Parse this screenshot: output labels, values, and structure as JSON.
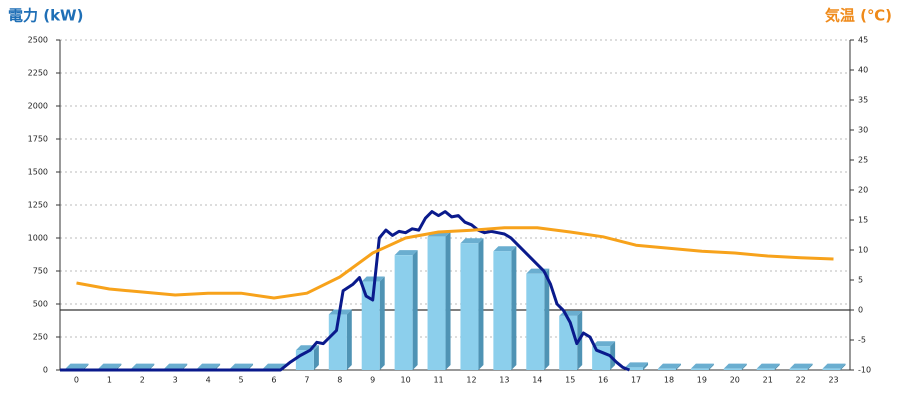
{
  "chart_data": {
    "type": "bar",
    "title_left": "電力 (kW)",
    "title_left_color": "#1f6fb6",
    "title_right": "気温 (℃)",
    "title_right_color": "#ef8a1a",
    "categories": [
      "0",
      "1",
      "2",
      "3",
      "4",
      "5",
      "6",
      "7",
      "8",
      "9",
      "10",
      "11",
      "12",
      "13",
      "14",
      "15",
      "16",
      "17",
      "18",
      "19",
      "20",
      "21",
      "22",
      "23"
    ],
    "xlim": [
      -0.5,
      23.5
    ],
    "ylim": [
      0,
      2500
    ],
    "yticks": [
      0,
      250,
      500,
      750,
      1000,
      1250,
      1500,
      1750,
      2000,
      2250,
      2500
    ],
    "y2lim": [
      -10,
      45
    ],
    "y2ticks": [
      -10,
      -5,
      0,
      5,
      10,
      15,
      20,
      25,
      30,
      35,
      40,
      45
    ],
    "grid": true,
    "series": [
      {
        "type": "bar",
        "color": "#8ccfec",
        "values": [
          10,
          10,
          10,
          10,
          10,
          10,
          10,
          150,
          420,
          670,
          870,
          1010,
          960,
          900,
          730,
          410,
          180,
          20,
          10,
          10,
          10,
          10,
          10,
          10
        ]
      },
      {
        "type": "line",
        "color": "#0a1a8c",
        "x": [
          -0.5,
          6.2,
          6.5,
          6.8,
          7.1,
          7.3,
          7.5,
          7.7,
          7.9,
          8.1,
          8.4,
          8.6,
          8.8,
          9.0,
          9.2,
          9.4,
          9.6,
          9.8,
          10.0,
          10.2,
          10.4,
          10.6,
          10.8,
          11.0,
          11.2,
          11.4,
          11.6,
          11.8,
          12.0,
          12.2,
          12.4,
          12.6,
          12.8,
          13.0,
          13.2,
          13.4,
          13.6,
          13.8,
          14.0,
          14.2,
          14.4,
          14.6,
          14.8,
          15.0,
          15.2,
          15.4,
          15.6,
          15.8,
          16.0,
          16.2,
          16.4,
          16.6,
          16.8
        ],
        "values": [
          0,
          0,
          60,
          110,
          150,
          210,
          200,
          250,
          300,
          600,
          650,
          700,
          560,
          530,
          1000,
          1060,
          1020,
          1050,
          1040,
          1070,
          1060,
          1150,
          1200,
          1170,
          1200,
          1160,
          1170,
          1120,
          1100,
          1060,
          1040,
          1050,
          1040,
          1030,
          1000,
          950,
          900,
          850,
          800,
          750,
          650,
          500,
          450,
          360,
          200,
          280,
          250,
          150,
          130,
          110,
          60,
          20,
          0
        ]
      },
      {
        "type": "line",
        "axis": "y2",
        "color": "#f7a21b",
        "values": [
          4.5,
          3.5,
          3,
          2.5,
          2.8,
          2.8,
          2,
          2.8,
          5.5,
          9.5,
          12,
          13,
          13.3,
          13.7,
          13.7,
          13,
          12.2,
          10.8,
          10.3,
          9.8,
          9.5,
          9,
          8.7,
          8.5
        ]
      }
    ]
  }
}
